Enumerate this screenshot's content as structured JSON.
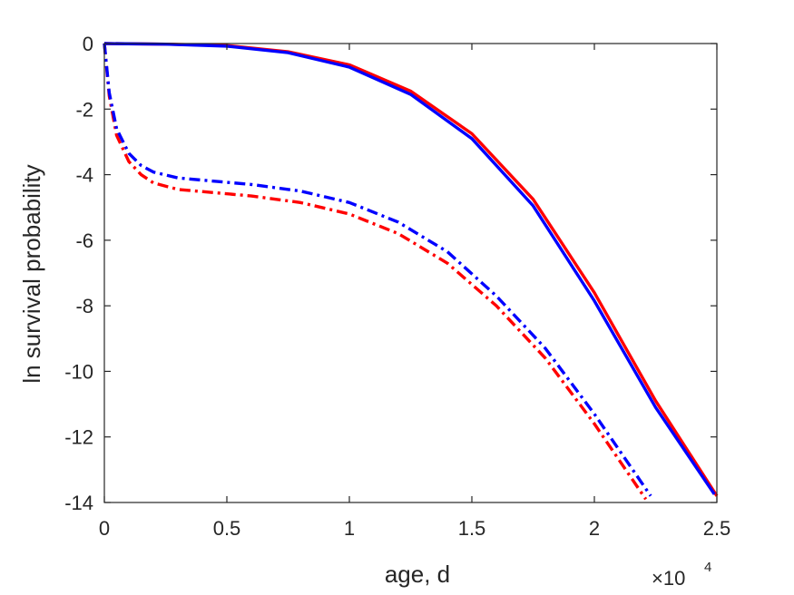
{
  "chart_data": {
    "type": "line",
    "title": "",
    "xlabel": "age, d",
    "ylabel": "ln survival probability",
    "x_multiplier_label": "×10",
    "x_multiplier_exponent": "4",
    "xlim": [
      0,
      2.5
    ],
    "ylim": [
      -14,
      0
    ],
    "xticks": [
      0,
      0.5,
      1,
      1.5,
      2,
      2.5
    ],
    "xtick_labels": [
      "0",
      "0.5",
      "1",
      "1.5",
      "2",
      "2.5"
    ],
    "yticks": [
      0,
      -2,
      -4,
      -6,
      -8,
      -10,
      -12,
      -14
    ],
    "ytick_labels": [
      "0",
      "-2",
      "-4",
      "-6",
      "-8",
      "-10",
      "-12",
      "-14"
    ],
    "grid": false,
    "series": [
      {
        "color": "#ff0000",
        "style": "solid",
        "x": [
          0,
          0.25,
          0.5,
          0.75,
          1.0,
          1.25,
          1.5,
          1.75,
          2.0,
          2.25,
          2.5
        ],
        "y": [
          0,
          -0.02,
          -0.06,
          -0.25,
          -0.65,
          -1.45,
          -2.75,
          -4.75,
          -7.6,
          -10.9,
          -13.8
        ]
      },
      {
        "color": "#0000ff",
        "style": "solid",
        "x": [
          0,
          0.25,
          0.5,
          0.75,
          1.0,
          1.25,
          1.5,
          1.75,
          2.0,
          2.25,
          2.49
        ],
        "y": [
          0,
          -0.02,
          -0.08,
          -0.28,
          -0.72,
          -1.55,
          -2.9,
          -4.95,
          -7.85,
          -11.1,
          -13.75
        ]
      },
      {
        "color": "#ff0000",
        "style": "dashdot",
        "x": [
          0,
          0.02,
          0.05,
          0.1,
          0.15,
          0.2,
          0.3,
          0.45,
          0.6,
          0.8,
          1.0,
          1.2,
          1.4,
          1.6,
          1.8,
          2.0,
          2.21
        ],
        "y": [
          0,
          -1.6,
          -2.8,
          -3.6,
          -4.0,
          -4.25,
          -4.45,
          -4.55,
          -4.65,
          -4.85,
          -5.2,
          -5.8,
          -6.7,
          -8.0,
          -9.6,
          -11.6,
          -13.9
        ]
      },
      {
        "color": "#0000ff",
        "style": "dashdot",
        "x": [
          0,
          0.02,
          0.05,
          0.1,
          0.15,
          0.2,
          0.3,
          0.45,
          0.6,
          0.8,
          1.0,
          1.2,
          1.4,
          1.6,
          1.8,
          2.0,
          2.23
        ],
        "y": [
          0,
          -1.5,
          -2.6,
          -3.35,
          -3.72,
          -3.92,
          -4.1,
          -4.2,
          -4.3,
          -4.5,
          -4.85,
          -5.45,
          -6.35,
          -7.7,
          -9.3,
          -11.3,
          -13.8
        ]
      }
    ]
  }
}
